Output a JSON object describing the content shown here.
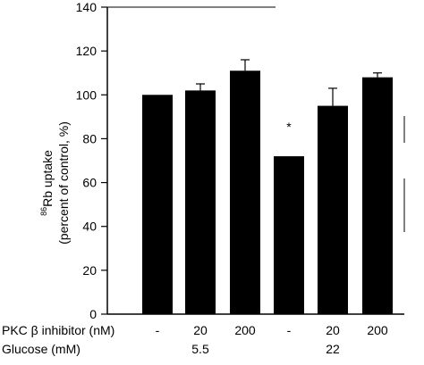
{
  "chart_data": {
    "type": "bar",
    "ylabel_line1_sup": "86",
    "ylabel_line1_rest": "Rb uptake",
    "ylabel_line2": "(percent of control, %)",
    "ylim": [
      0,
      140
    ],
    "yticks": [
      0,
      20,
      40,
      60,
      80,
      100,
      120,
      140
    ],
    "grid": false,
    "bars": [
      {
        "inhibitor": "-",
        "glucose": "5.5",
        "value": 100,
        "err": 0
      },
      {
        "inhibitor": "20",
        "glucose": "5.5",
        "value": 102,
        "err": 3
      },
      {
        "inhibitor": "200",
        "glucose": "5.5",
        "value": 111,
        "err": 5
      },
      {
        "inhibitor": "-",
        "glucose": "22",
        "value": 72,
        "err": 0,
        "annotation": "*"
      },
      {
        "inhibitor": "20",
        "glucose": "22",
        "value": 95,
        "err": 8
      },
      {
        "inhibitor": "200",
        "glucose": "22",
        "value": 108,
        "err": 2
      }
    ],
    "row_labels": {
      "inhibitor": "PKC β inhibitor (nM)",
      "glucose": "Glucose (mM)"
    },
    "glucose_groups": [
      "5.5",
      "22"
    ]
  },
  "colors": {
    "bar": "#000000",
    "axis": "#000000"
  }
}
